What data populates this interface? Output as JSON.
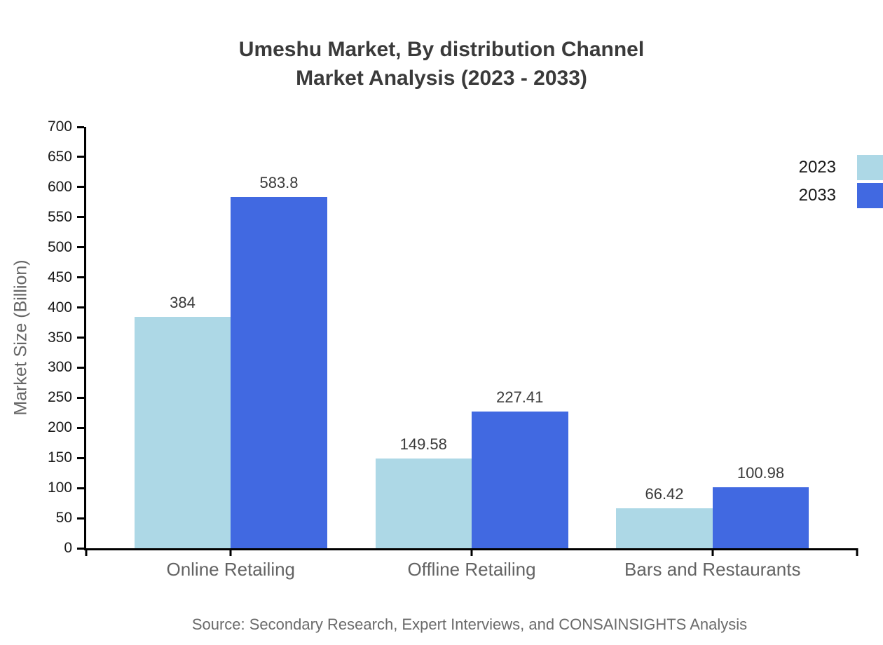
{
  "chart": {
    "title_line1": "Umeshu Market, By distribution Channel",
    "title_line2": "Market Analysis (2023 - 2033)"
  },
  "source": "Source: Secondary Research, Expert Interviews, and CONSAINSIGHTS Analysis",
  "colors": {
    "series_2023": "#add8e6",
    "series_2033": "#4169e1",
    "axis": "#000000",
    "title_text": "#3a3a3a",
    "value_label_text": "#3a3a3a",
    "tick_label_text": "#1a1a1a",
    "category_text": "#636363",
    "ylabel_text": "#666666",
    "source_text": "#6b6b6b",
    "background": "#ffffff"
  },
  "chart_data": {
    "type": "bar",
    "title": "Umeshu Market, By distribution Channel Market Analysis (2023 - 2033)",
    "categories": [
      "Online Retailing",
      "Offline Retailing",
      "Bars and Restaurants"
    ],
    "series": [
      {
        "name": "2023",
        "color": "#add8e6",
        "values": [
          384,
          149.58,
          66.42
        ],
        "labels": [
          "384",
          "149.58",
          "66.42"
        ]
      },
      {
        "name": "2033",
        "color": "#4169e1",
        "values": [
          583.8,
          227.41,
          100.98
        ],
        "labels": [
          "583.8",
          "227.41",
          "100.98"
        ]
      }
    ],
    "xlabel": "",
    "ylabel": "Market Size (Billion)",
    "ylim": [
      0,
      700
    ],
    "yticks": [
      0,
      50,
      100,
      150,
      200,
      250,
      300,
      350,
      400,
      450,
      500,
      550,
      600,
      650,
      700
    ],
    "grid": false,
    "legend_position": "top-right"
  }
}
